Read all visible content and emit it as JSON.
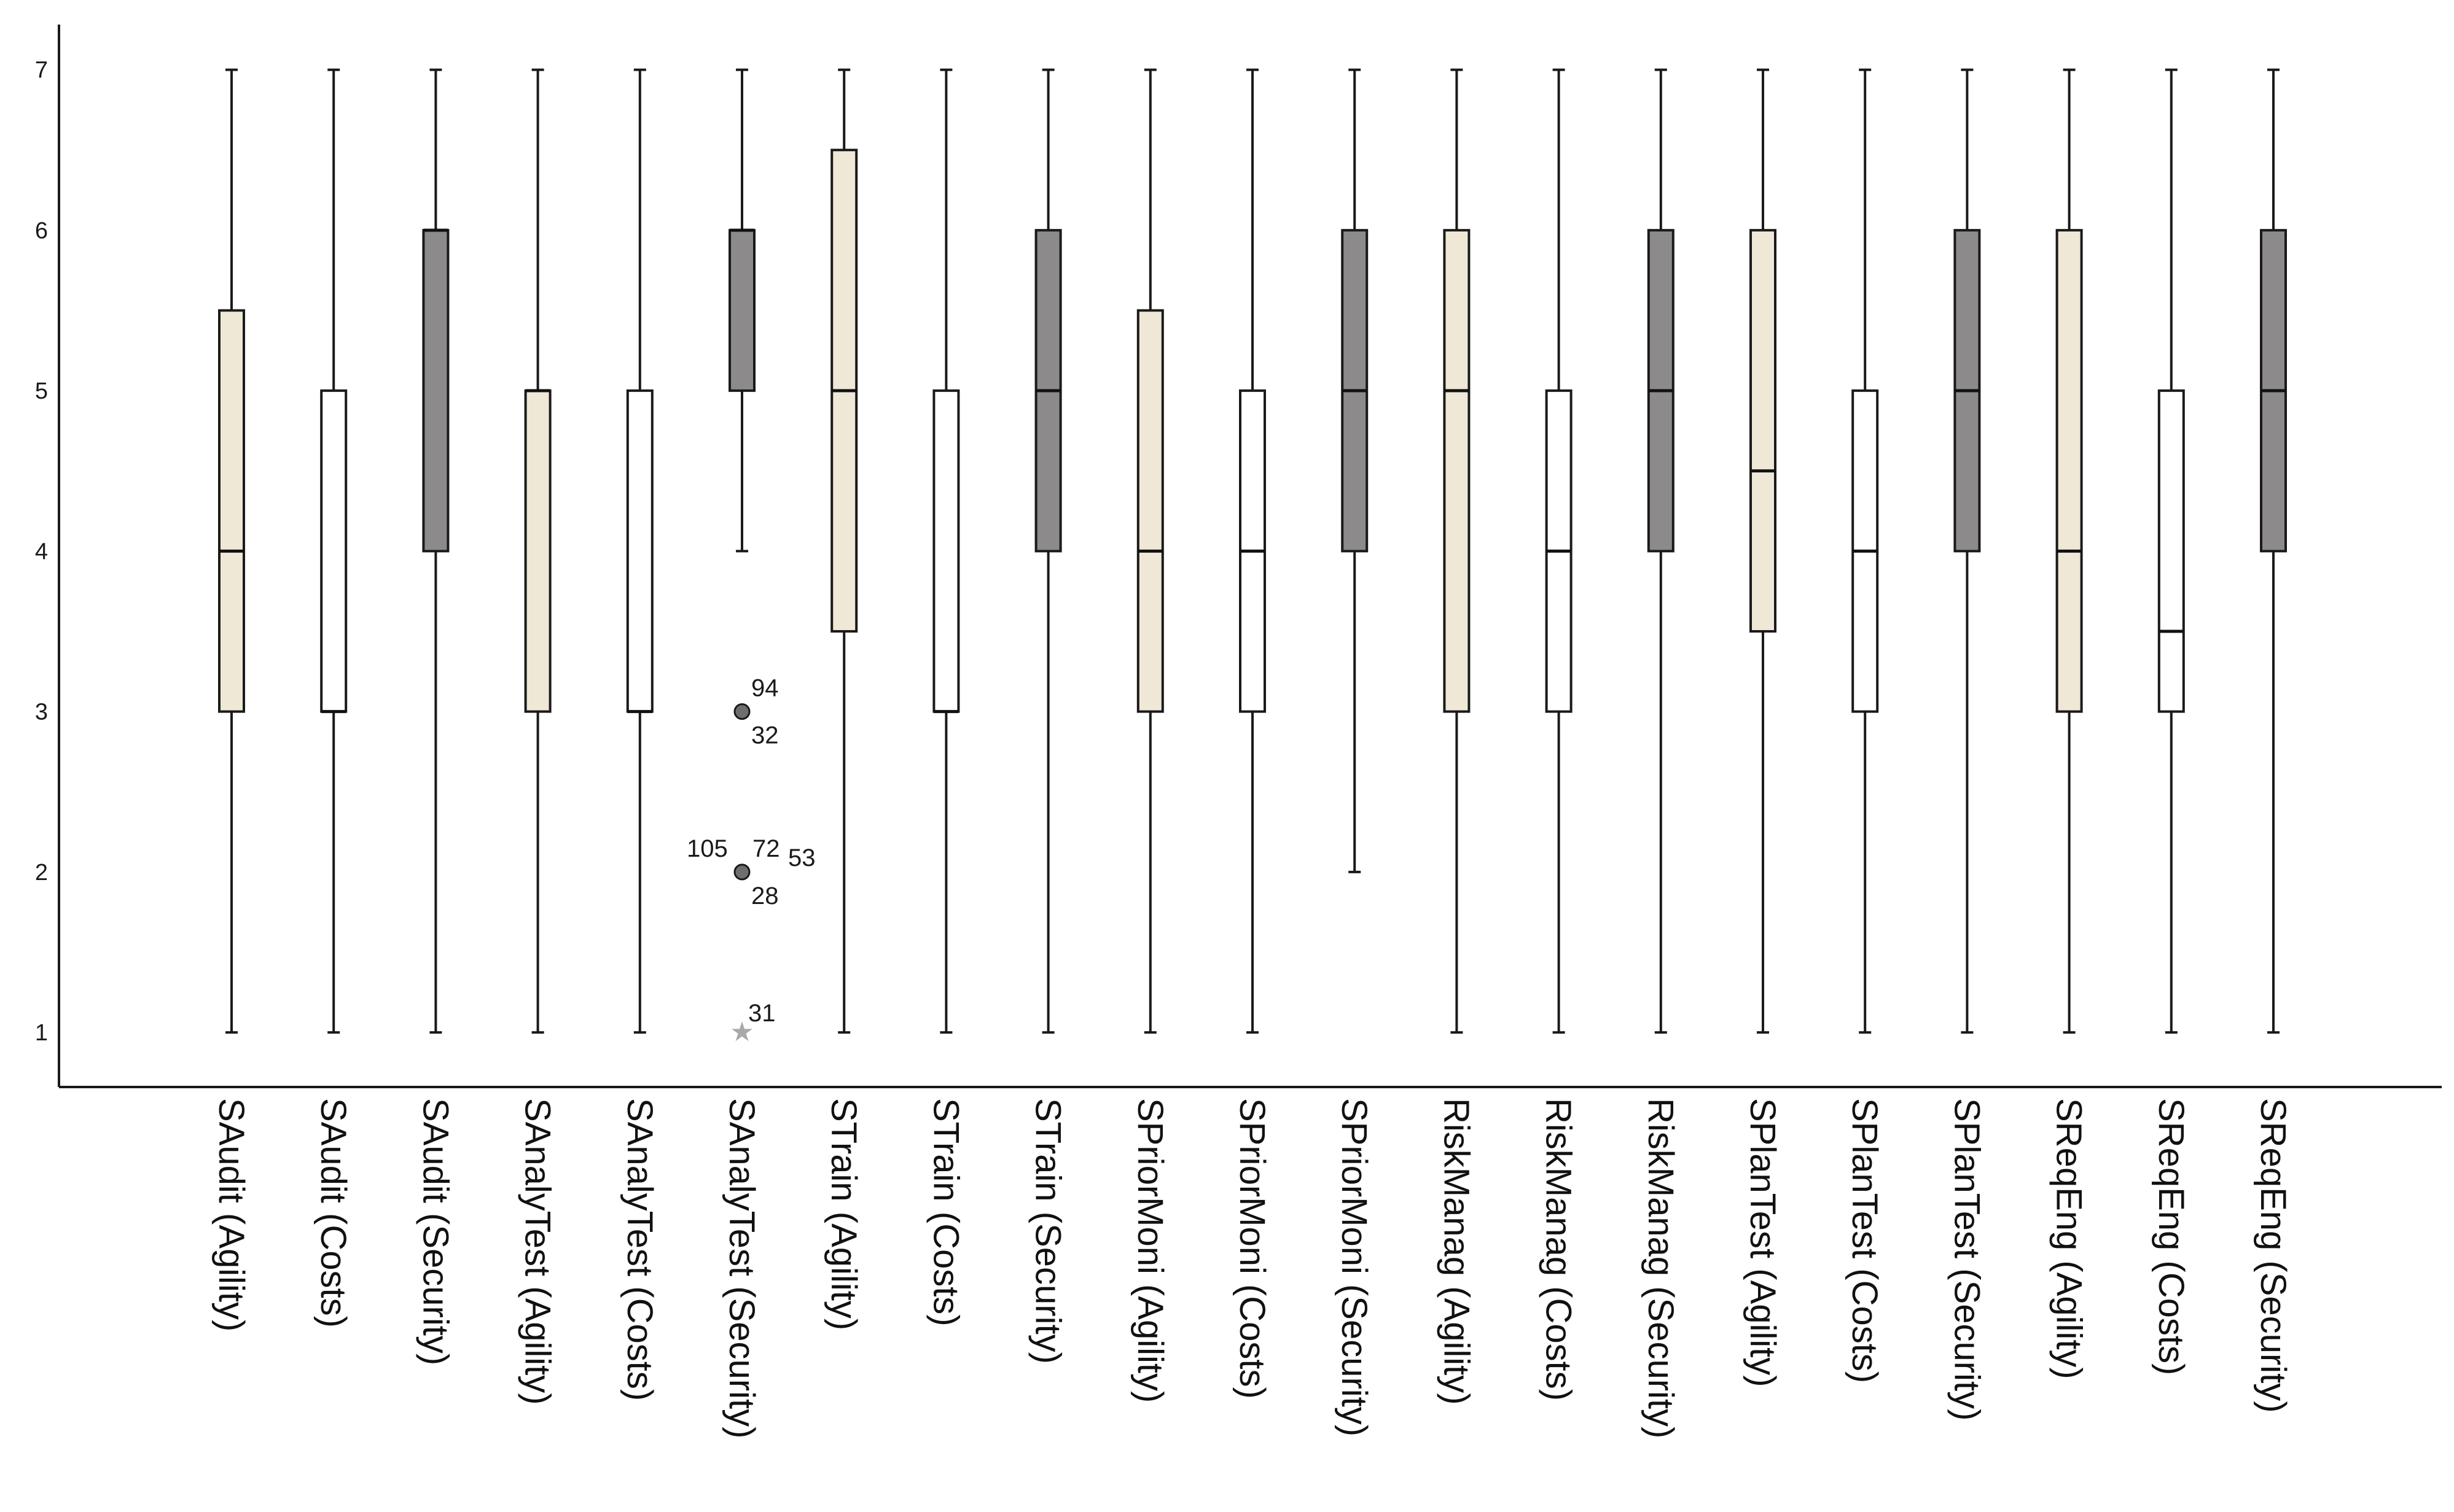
{
  "colors": {
    "agility": "#efe8d6",
    "costs": "#ffffff",
    "security": "#8c8a8a",
    "line": "#1a1a1a",
    "outlier_circle": "#6e6e6e",
    "outlier_star": "#a9a9a9"
  },
  "chart_data": {
    "type": "boxplot",
    "ylim": [
      0.66,
      7.32
    ],
    "yticks": [
      "1",
      "2",
      "3",
      "4",
      "5",
      "6",
      "7"
    ],
    "xlabel": "",
    "ylabel": "",
    "grid": false,
    "legend": "none",
    "categories": [
      "SAudit (Agility)",
      "SAudit (Costs)",
      "SAudit (Security)",
      "SAnalyTest (Agility)",
      "SAnalyTest (Costs)",
      "SAnalyTest (Security)",
      "STrain (Agility)",
      "STrain (Costs)",
      "STrain (Security)",
      "SPriorMoni (Agility)",
      "SPriorMoni (Costs)",
      "SPriorMoni (Security)",
      "RiskManag (Agility)",
      "RiskManag (Costs)",
      "RiskManag (Security)",
      "SPlanTest (Agility)",
      "SPlanTest (Costs)",
      "SPlanTest (Security)",
      "SReqEng (Agility)",
      "SReqEng (Costs)",
      "SReqEng (Security)"
    ],
    "boxes": [
      {
        "group": "agility",
        "min": 1,
        "q1": 3,
        "median": 4,
        "q3": 5.5,
        "max": 7
      },
      {
        "group": "costs",
        "min": 1,
        "q1": 3,
        "median": 3,
        "q3": 5,
        "max": 7
      },
      {
        "group": "security",
        "min": 1,
        "q1": 4,
        "median": 6,
        "q3": 6,
        "max": 7
      },
      {
        "group": "agility",
        "min": 1,
        "q1": 3,
        "median": 5,
        "q3": 5,
        "max": 7
      },
      {
        "group": "costs",
        "min": 1,
        "q1": 3,
        "median": 3,
        "q3": 5,
        "max": 7
      },
      {
        "group": "security",
        "min": 4,
        "q1": 5,
        "median": 6,
        "q3": 6,
        "max": 7
      },
      {
        "group": "agility",
        "min": 1,
        "q1": 3.5,
        "median": 5,
        "q3": 6.5,
        "max": 7
      },
      {
        "group": "costs",
        "min": 1,
        "q1": 3,
        "median": 3,
        "q3": 5,
        "max": 7
      },
      {
        "group": "security",
        "min": 1,
        "q1": 4,
        "median": 5,
        "q3": 6,
        "max": 7
      },
      {
        "group": "agility",
        "min": 1,
        "q1": 3,
        "median": 4,
        "q3": 5.5,
        "max": 7
      },
      {
        "group": "costs",
        "min": 1,
        "q1": 3,
        "median": 4,
        "q3": 5,
        "max": 7
      },
      {
        "group": "security",
        "min": 2,
        "q1": 4,
        "median": 5,
        "q3": 6,
        "max": 7
      },
      {
        "group": "agility",
        "min": 1,
        "q1": 3,
        "median": 5,
        "q3": 6,
        "max": 7
      },
      {
        "group": "costs",
        "min": 1,
        "q1": 3,
        "median": 4,
        "q3": 5,
        "max": 7
      },
      {
        "group": "security",
        "min": 1,
        "q1": 4,
        "median": 5,
        "q3": 6,
        "max": 7
      },
      {
        "group": "agility",
        "min": 1,
        "q1": 3.5,
        "median": 4.5,
        "q3": 6,
        "max": 7
      },
      {
        "group": "costs",
        "min": 1,
        "q1": 3,
        "median": 4,
        "q3": 5,
        "max": 7
      },
      {
        "group": "security",
        "min": 1,
        "q1": 4,
        "median": 5,
        "q3": 6,
        "max": 7
      },
      {
        "group": "agility",
        "min": 1,
        "q1": 3,
        "median": 4,
        "q3": 6,
        "max": 7
      },
      {
        "group": "costs",
        "min": 1,
        "q1": 3,
        "median": 3.5,
        "q3": 5,
        "max": 7
      },
      {
        "group": "security",
        "min": 1,
        "q1": 4,
        "median": 5,
        "q3": 6,
        "max": 7
      }
    ],
    "outliers": [
      {
        "category": 5,
        "value": 3,
        "marker": "circle",
        "labels": [
          "94",
          "32"
        ]
      },
      {
        "category": 5,
        "value": 2,
        "marker": "circle",
        "labels": [
          "105",
          "72",
          "53",
          "28"
        ]
      },
      {
        "category": 5,
        "value": 1,
        "marker": "star",
        "labels": [
          "31"
        ]
      }
    ]
  }
}
